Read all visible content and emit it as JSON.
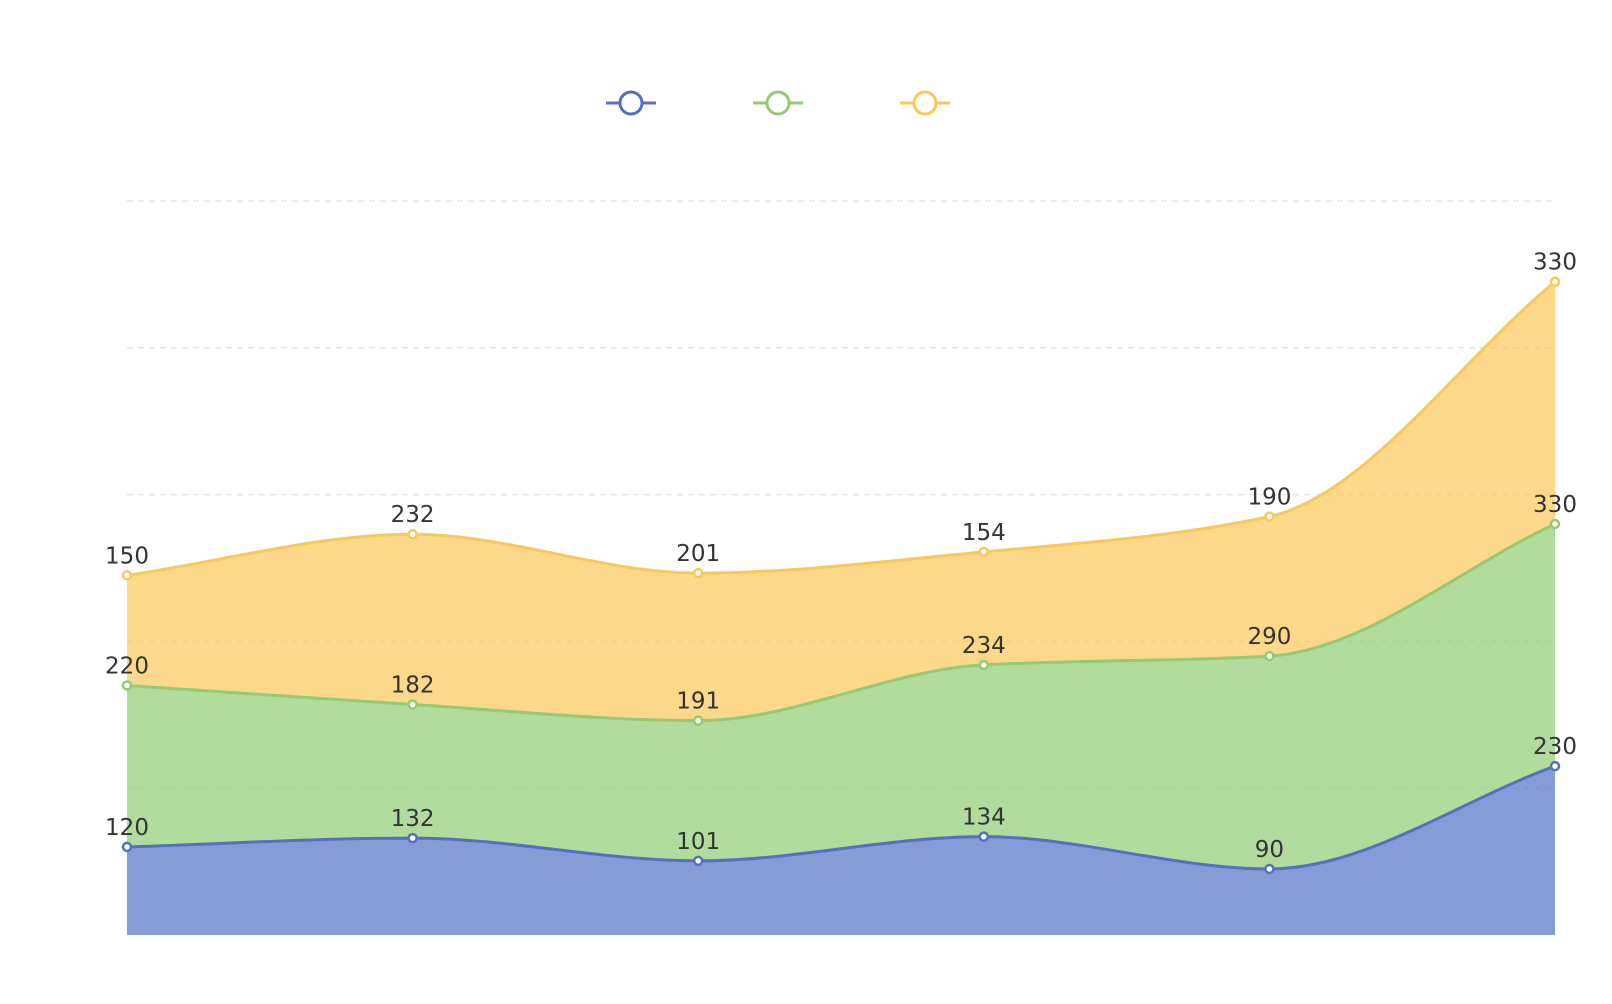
{
  "chart_data": {
    "type": "area",
    "stacked": true,
    "smooth": true,
    "categories": [
      "",
      "",
      "",
      "",
      "",
      ""
    ],
    "series": [
      {
        "values": [
          120,
          132,
          101,
          134,
          90,
          230
        ],
        "color": "#5470c6"
      },
      {
        "values": [
          220,
          182,
          191,
          234,
          290,
          330
        ],
        "color": "#91cc75"
      },
      {
        "values": [
          150,
          232,
          201,
          154,
          190,
          330
        ],
        "color": "#fac858"
      }
    ],
    "ylim": [
      0,
      1000
    ],
    "grid": true,
    "grid_style": "dashed",
    "data_labels": true,
    "legend": {
      "position": "top-center",
      "icon": "circle-line"
    },
    "title": "",
    "xlabel": "",
    "ylabel": ""
  }
}
